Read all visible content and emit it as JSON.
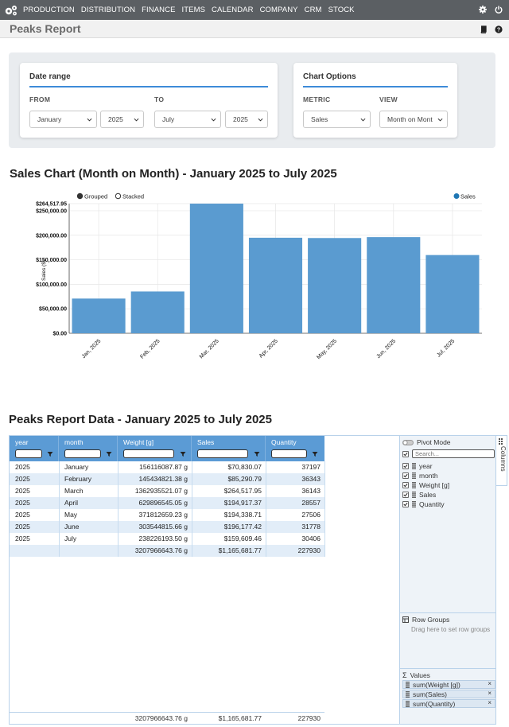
{
  "nav": {
    "items": [
      "PRODUCTION",
      "DISTRIBUTION",
      "FINANCE",
      "ITEMS",
      "CALENDAR",
      "COMPANY",
      "CRM",
      "STOCK"
    ],
    "icons": [
      "gear-icon",
      "power-icon"
    ]
  },
  "page": {
    "title": "Peaks Report",
    "title_icons": [
      "book-icon",
      "help-icon"
    ]
  },
  "date_range": {
    "heading": "Date range",
    "from_label": "FROM",
    "to_label": "TO",
    "from_month": "January",
    "from_year": "2025",
    "to_month": "July",
    "to_year": "2025"
  },
  "chart_options": {
    "heading": "Chart Options",
    "metric_label": "METRIC",
    "view_label": "VIEW",
    "metric": "Sales",
    "view": "Month on Mont"
  },
  "chart_title": "Sales Chart (Month on Month) - January 2025 to July 2025",
  "chart_data": {
    "type": "bar",
    "categories": [
      "Jan, 2025",
      "Feb, 2025",
      "Mar, 2025",
      "Apr, 2025",
      "May, 2025",
      "Jun, 2025",
      "Jul, 2025"
    ],
    "series": [
      {
        "name": "Sales",
        "values": [
          70830.07,
          85290.79,
          264517.95,
          194917.37,
          194338.71,
          196177.42,
          159609.46
        ]
      }
    ],
    "ylabel": "Sales ($)",
    "ylim": [
      0,
      264517.95
    ],
    "yticks": [
      "$0.00",
      "$50,000.00",
      "$100,000.00",
      "$150,000.00",
      "$200,000.00",
      "$250,000.00"
    ],
    "ymax_label": "$264,517.95",
    "mode_options": [
      "Grouped",
      "Stacked"
    ],
    "selected_mode": "Grouped",
    "legend_position": "top-right",
    "grid": true,
    "bar_color": "#5a9bd0"
  },
  "data_title": "Peaks Report Data - January 2025 to July 2025",
  "grid": {
    "columns": [
      "year",
      "month",
      "Weight [g]",
      "Sales",
      "Quantity"
    ],
    "rows": [
      [
        "2025",
        "January",
        "156116087.87 g",
        "$70,830.07",
        "37197"
      ],
      [
        "2025",
        "February",
        "145434821.38 g",
        "$85,290.79",
        "36343"
      ],
      [
        "2025",
        "March",
        "1362935521.07 g",
        "$264,517.95",
        "36143"
      ],
      [
        "2025",
        "April",
        "629896545.05 g",
        "$194,917.37",
        "28557"
      ],
      [
        "2025",
        "May",
        "371812659.23 g",
        "$194,338.71",
        "27506"
      ],
      [
        "2025",
        "June",
        "303544815.66 g",
        "$196,177.42",
        "31778"
      ],
      [
        "2025",
        "July",
        "238226193.50 g",
        "$159,609.46",
        "30406"
      ]
    ],
    "totals": [
      "",
      "",
      "3207966643.76 g",
      "$1,165,681.77",
      "227930"
    ]
  },
  "side_panel": {
    "pivot_label": "Pivot Mode",
    "search_placeholder": "Search...",
    "columns": [
      "year",
      "month",
      "Weight [g]",
      "Sales",
      "Quantity"
    ],
    "row_groups_label": "Row Groups",
    "row_groups_hint": "Drag here to set row groups",
    "values_label": "Values",
    "values": [
      "sum(Weight [g])",
      "sum(Sales)",
      "sum(Quantity)"
    ],
    "tab_label": "Columns"
  }
}
